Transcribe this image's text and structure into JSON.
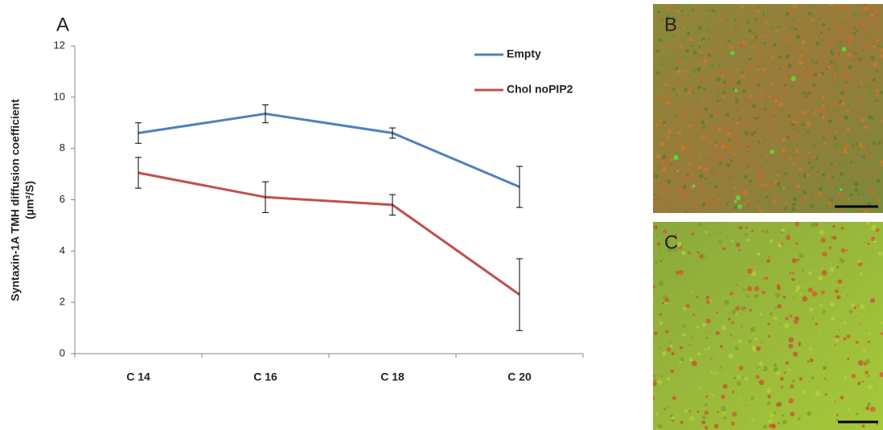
{
  "panels": [
    "A",
    "B",
    "C"
  ],
  "chart_data": {
    "type": "line",
    "y_label": [
      "Syntaxin-1A TMH diffusion coefficient",
      "(µm²/S)"
    ],
    "categories": [
      "C 14",
      "C 16",
      "C 18",
      "C 20"
    ],
    "series": [
      {
        "name": "Empty",
        "color": "#4f81bd",
        "values": [
          8.6,
          9.35,
          8.6,
          6.5
        ],
        "errors": [
          0.4,
          0.35,
          0.2,
          0.8
        ]
      },
      {
        "name": "Chol noPIP2",
        "color": "#c0504d",
        "values": [
          7.05,
          6.1,
          5.8,
          2.3
        ],
        "errors": [
          0.6,
          0.6,
          0.4,
          1.4
        ]
      }
    ],
    "ylim": [
      0,
      12
    ],
    "yticks": [
      0,
      2,
      4,
      6,
      8,
      10,
      12
    ],
    "legend": "top-right"
  }
}
